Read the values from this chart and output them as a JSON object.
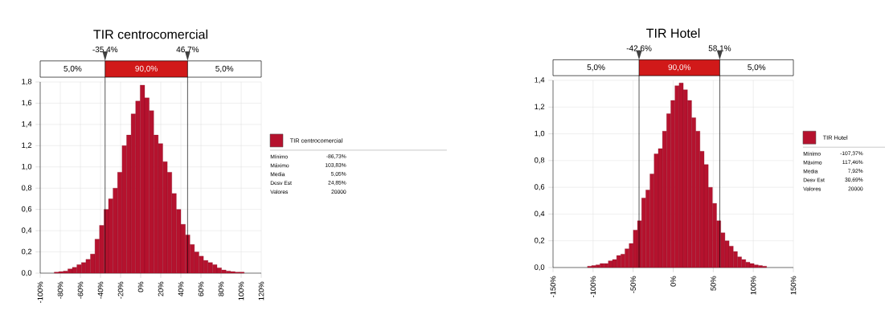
{
  "chart_data": [
    {
      "type": "histogram",
      "title": "TIR centrocomercial",
      "bins": [
        -86,
        -81.5,
        -77,
        -72.5,
        -68,
        -63.5,
        -59,
        -54.5,
        -50,
        -45.5,
        -41,
        -36.5,
        -32,
        -27.5,
        -23,
        -18.5,
        -14,
        -9.5,
        -5,
        -0.5,
        4,
        8.5,
        13,
        17.5,
        22,
        26.5,
        31,
        35.5,
        40,
        44.5,
        49,
        53.5,
        58,
        62.5,
        67,
        71.5,
        76,
        80.5,
        85,
        89.5,
        94,
        98.5,
        103
      ],
      "series": [
        {
          "name": "TIR centrocomercial",
          "color": "#b5122e",
          "values": [
            0.01,
            0.015,
            0.02,
            0.04,
            0.055,
            0.08,
            0.1,
            0.13,
            0.18,
            0.32,
            0.45,
            0.6,
            0.7,
            0.8,
            0.95,
            1.2,
            1.3,
            1.5,
            1.62,
            1.77,
            1.65,
            1.53,
            1.3,
            1.22,
            1.05,
            0.95,
            0.75,
            0.6,
            0.46,
            0.36,
            0.27,
            0.2,
            0.16,
            0.12,
            0.1,
            0.08,
            0.05,
            0.03,
            0.02,
            0.015,
            0.01,
            0.01
          ]
        }
      ],
      "xlim": [
        -100,
        120
      ],
      "xticks": [
        {
          "value": -100,
          "label": "-100%"
        },
        {
          "value": -80,
          "label": "-80%"
        },
        {
          "value": -60,
          "label": "-60%"
        },
        {
          "value": -40,
          "label": "-40%"
        },
        {
          "value": -20,
          "label": "-20%"
        },
        {
          "value": 0,
          "label": "0%"
        },
        {
          "value": 20,
          "label": "20%"
        },
        {
          "value": 40,
          "label": "40%"
        },
        {
          "value": 60,
          "label": "60%"
        },
        {
          "value": 80,
          "label": "80%"
        },
        {
          "value": 100,
          "label": "100%"
        },
        {
          "value": 120,
          "label": "120%"
        }
      ],
      "ylim": [
        0,
        1.8
      ],
      "yticks": [
        {
          "value": 0,
          "label": "0,0"
        },
        {
          "value": 0.2,
          "label": "0,2"
        },
        {
          "value": 0.4,
          "label": "0,4"
        },
        {
          "value": 0.6,
          "label": "0,6"
        },
        {
          "value": 0.8,
          "label": "0,8"
        },
        {
          "value": 1.0,
          "label": "1,0"
        },
        {
          "value": 1.2,
          "label": "1,2"
        },
        {
          "value": 1.4,
          "label": "1,4"
        },
        {
          "value": 1.6,
          "label": "1,6"
        },
        {
          "value": 1.8,
          "label": "1,8"
        }
      ],
      "ref_lines": [
        {
          "axis": "x",
          "value": -35.4,
          "label": "-35,4%",
          "color": "#000000"
        },
        {
          "axis": "x",
          "value": 46.7,
          "label": "46,7%",
          "color": "#000000"
        }
      ],
      "annotations": [
        "5,0%",
        "90,0%",
        "5,0%",
        "Mínimo",
        "-86,73%",
        "Máximo",
        "103,83%",
        "Media",
        "5,05%",
        "Desv Est",
        "24,85%",
        "Valores",
        "20000"
      ],
      "grid": true,
      "legend": "right"
    },
    {
      "type": "histogram",
      "title": "TIR Hotel",
      "bins": [
        -107,
        -101.8,
        -96.6,
        -91.4,
        -86.2,
        -81,
        -75.8,
        -70.6,
        -65.4,
        -60.2,
        -55,
        -49.8,
        -44.6,
        -39.4,
        -34.2,
        -29,
        -23.8,
        -18.6,
        -13.4,
        -8.2,
        -3,
        2.2,
        7.4,
        12.6,
        17.8,
        23,
        28.2,
        33.4,
        38.6,
        43.8,
        49,
        54.2,
        59.4,
        64.6,
        69.8,
        75,
        80.2,
        85.4,
        90.6,
        95.8,
        101,
        106.2,
        111.4,
        116.6
      ],
      "series": [
        {
          "name": "TIR Hotel",
          "color": "#b5122e",
          "values": [
            0.01,
            0.015,
            0.02,
            0.03,
            0.03,
            0.05,
            0.06,
            0.09,
            0.1,
            0.14,
            0.18,
            0.28,
            0.35,
            0.52,
            0.58,
            0.7,
            0.85,
            0.89,
            1.02,
            1.15,
            1.25,
            1.36,
            1.38,
            1.33,
            1.25,
            1.12,
            1.02,
            0.87,
            0.77,
            0.6,
            0.48,
            0.35,
            0.26,
            0.2,
            0.16,
            0.12,
            0.08,
            0.06,
            0.04,
            0.03,
            0.02,
            0.015,
            0.01
          ]
        }
      ],
      "xlim": [
        -150,
        150
      ],
      "xticks": [
        {
          "value": -150,
          "label": "-150%"
        },
        {
          "value": -100,
          "label": "-100%"
        },
        {
          "value": -50,
          "label": "-50%"
        },
        {
          "value": 0,
          "label": "0%"
        },
        {
          "value": 50,
          "label": "50%"
        },
        {
          "value": 100,
          "label": "100%"
        },
        {
          "value": 150,
          "label": "150%"
        }
      ],
      "ylim": [
        0,
        1.4
      ],
      "yticks": [
        {
          "value": 0,
          "label": "0,0"
        },
        {
          "value": 0.2,
          "label": "0,2"
        },
        {
          "value": 0.4,
          "label": "0,4"
        },
        {
          "value": 0.6,
          "label": "0,6"
        },
        {
          "value": 0.8,
          "label": "0,8"
        },
        {
          "value": 1.0,
          "label": "1,0"
        },
        {
          "value": 1.2,
          "label": "1,2"
        },
        {
          "value": 1.4,
          "label": "1,4"
        }
      ],
      "ref_lines": [
        {
          "axis": "x",
          "value": -42.6,
          "label": "-42,6%",
          "color": "#000000"
        },
        {
          "axis": "x",
          "value": 58.1,
          "label": "58,1%",
          "color": "#000000"
        }
      ],
      "annotations": [
        "5,0%",
        "90,0%",
        "5,0%",
        "Mínimo",
        "-107,37%",
        "Máximo",
        "117,46%",
        "Media",
        "7,92%",
        "Desv Est",
        "30,69%",
        "Valores",
        "20000"
      ],
      "grid": true,
      "legend": "right"
    }
  ]
}
